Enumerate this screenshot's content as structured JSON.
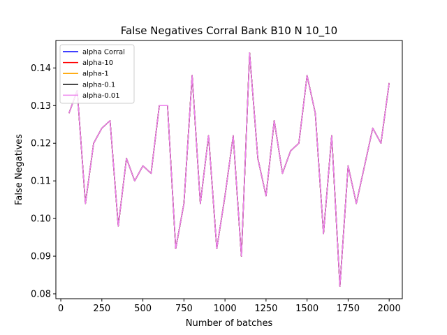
{
  "chart_data": {
    "type": "line",
    "title": "False Negatives Corral Bank B10 N 10_10",
    "xlabel": "Number of batches",
    "ylabel": "False Negatives",
    "xlim": [
      -30,
      2080
    ],
    "ylim": [
      0.0787,
      0.1473
    ],
    "xticks": [
      0,
      250,
      500,
      750,
      1000,
      1250,
      1500,
      1750,
      2000
    ],
    "xtick_labels": [
      "0",
      "250",
      "500",
      "750",
      "1000",
      "1250",
      "1500",
      "1750",
      "2000"
    ],
    "yticks": [
      0.08,
      0.09,
      0.1,
      0.11,
      0.12,
      0.13,
      0.14
    ],
    "ytick_labels": [
      "0.08",
      "0.09",
      "0.10",
      "0.11",
      "0.12",
      "0.13",
      "0.14"
    ],
    "grid": false,
    "legend_position": "top-left",
    "x": [
      50,
      100,
      150,
      200,
      250,
      300,
      350,
      400,
      450,
      500,
      550,
      600,
      650,
      700,
      750,
      800,
      850,
      900,
      950,
      1000,
      1050,
      1100,
      1150,
      1200,
      1250,
      1300,
      1350,
      1400,
      1450,
      1500,
      1550,
      1600,
      1650,
      1700,
      1750,
      1800,
      1850,
      1900,
      1950,
      2000
    ],
    "series": [
      {
        "name": "alpha Corral",
        "color": "#0000ff",
        "values": [
          0.128,
          0.134,
          0.104,
          0.12,
          0.124,
          0.126,
          0.098,
          0.116,
          0.11,
          0.114,
          0.112,
          0.13,
          0.13,
          0.092,
          0.104,
          0.138,
          0.104,
          0.122,
          0.092,
          0.106,
          0.122,
          0.09,
          0.144,
          0.116,
          0.106,
          0.126,
          0.112,
          0.118,
          0.12,
          0.138,
          0.128,
          0.096,
          0.122,
          0.082,
          0.114,
          0.104,
          0.114,
          0.124,
          0.12,
          0.136
        ]
      },
      {
        "name": "alpha-10",
        "color": "#ff0000",
        "values": [
          0.128,
          0.134,
          0.104,
          0.12,
          0.124,
          0.126,
          0.098,
          0.116,
          0.11,
          0.114,
          0.112,
          0.13,
          0.13,
          0.092,
          0.104,
          0.138,
          0.104,
          0.122,
          0.092,
          0.106,
          0.122,
          0.09,
          0.144,
          0.116,
          0.106,
          0.126,
          0.112,
          0.118,
          0.12,
          0.138,
          0.128,
          0.096,
          0.122,
          0.082,
          0.114,
          0.104,
          0.114,
          0.124,
          0.12,
          0.136
        ]
      },
      {
        "name": "alpha-1",
        "color": "#ffa500",
        "values": [
          0.128,
          0.134,
          0.104,
          0.12,
          0.124,
          0.126,
          0.098,
          0.116,
          0.11,
          0.114,
          0.112,
          0.13,
          0.13,
          0.092,
          0.104,
          0.138,
          0.104,
          0.122,
          0.092,
          0.106,
          0.122,
          0.09,
          0.144,
          0.116,
          0.106,
          0.126,
          0.112,
          0.118,
          0.12,
          0.138,
          0.128,
          0.096,
          0.122,
          0.082,
          0.114,
          0.104,
          0.114,
          0.124,
          0.12,
          0.136
        ]
      },
      {
        "name": "alpha-0.1",
        "color": "#000000",
        "values": [
          0.128,
          0.134,
          0.104,
          0.12,
          0.124,
          0.126,
          0.098,
          0.116,
          0.11,
          0.114,
          0.112,
          0.13,
          0.13,
          0.092,
          0.104,
          0.138,
          0.104,
          0.122,
          0.092,
          0.106,
          0.122,
          0.09,
          0.144,
          0.116,
          0.106,
          0.126,
          0.112,
          0.118,
          0.12,
          0.138,
          0.128,
          0.096,
          0.122,
          0.082,
          0.114,
          0.104,
          0.114,
          0.124,
          0.12,
          0.136
        ]
      },
      {
        "name": "alpha-0.01",
        "color": "#ee82ee",
        "values": [
          0.128,
          0.134,
          0.104,
          0.12,
          0.124,
          0.126,
          0.098,
          0.116,
          0.11,
          0.114,
          0.112,
          0.13,
          0.13,
          0.092,
          0.104,
          0.138,
          0.104,
          0.122,
          0.092,
          0.106,
          0.122,
          0.09,
          0.144,
          0.116,
          0.106,
          0.126,
          0.112,
          0.118,
          0.12,
          0.138,
          0.128,
          0.096,
          0.122,
          0.082,
          0.114,
          0.104,
          0.114,
          0.124,
          0.12,
          0.136
        ]
      }
    ]
  }
}
